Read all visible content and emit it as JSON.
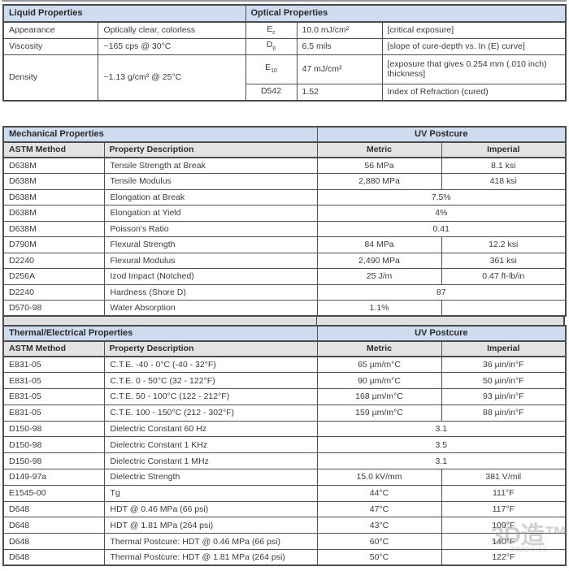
{
  "colors": {
    "header_blue": "#cddcee",
    "subheader_gray": "#e2e3e5",
    "border": "#515154",
    "text": "#3b3b3d"
  },
  "liquid_table": {
    "title": "Liquid Properties",
    "rows": [
      {
        "label": "Appearance",
        "value": "Optically clear, colorless"
      },
      {
        "label": "Viscosity",
        "value": "~165 cps @ 30°C"
      },
      {
        "label": "Density",
        "value": "~1.13 g/cm³ @ 25°C"
      }
    ]
  },
  "optical_table": {
    "title": "Optical Properties",
    "rows": [
      {
        "symbol_base": "E",
        "symbol_sub": "c",
        "value": "10.0 mJ/cm²",
        "description": "[critical exposure]"
      },
      {
        "symbol_base": "D",
        "symbol_sub": "p",
        "value": "6.5 mils",
        "description": "[slope of cure-depth vs. In (E) curve]"
      },
      {
        "symbol_base": "E",
        "symbol_sub": "10",
        "value": "47 mJ/cm²",
        "description": "[exposure that gives 0.254 mm (.010 inch) thickness]"
      },
      {
        "symbol_base": "D542",
        "symbol_sub": "",
        "value": "1.52",
        "description": "Index of Refraction (cured)"
      }
    ]
  },
  "mechanical_table": {
    "title": "Mechanical Properties",
    "postcure_header": "UV Postcure",
    "columns": [
      "ASTM Method",
      "Property Description",
      "Metric",
      "Imperial"
    ],
    "rows": [
      {
        "method": "D638M",
        "property": "Tensile Strength at Break",
        "metric": "56 MPa",
        "imperial": "8.1 ksi"
      },
      {
        "method": "D638M",
        "property": "Tensile Modulus",
        "metric": "2,880 MPa",
        "imperial": "418 ksi"
      },
      {
        "method": "D638M",
        "property": "Elongation at Break",
        "metric": "7.5%",
        "span": true
      },
      {
        "method": "D638M",
        "property": "Elongation at Yield",
        "metric": "4%",
        "span": true
      },
      {
        "method": "D638M",
        "property": "Poisson's Ratio",
        "metric": "0.41",
        "span": true
      },
      {
        "method": "D790M",
        "property": "Flexural Strength",
        "metric": "84 MPa",
        "imperial": "12.2 ksi"
      },
      {
        "method": "D2240",
        "property": "Flexural Modulus",
        "metric": "2,490 MPa",
        "imperial": "361 ksi"
      },
      {
        "method": "D256A",
        "property": "Izod Impact (Notched)",
        "metric": "25 J/m",
        "imperial": "0.47 ft-lb/in"
      },
      {
        "method": "D2240",
        "property": "Hardness (Shore D)",
        "metric": "87",
        "span": true
      },
      {
        "method": "D570-98",
        "property": "Water Absorption",
        "metric": "1.1%",
        "imperial": ""
      }
    ]
  },
  "thermal_table": {
    "title": "Thermal/Electrical Properties",
    "postcure_header": "UV Postcure",
    "columns": [
      "ASTM Method",
      "Property Description",
      "Metric",
      "Imperial"
    ],
    "rows": [
      {
        "method": "E831-05",
        "property": "C.T.E. -40 - 0°C (-40 - 32°F)",
        "metric": "65 µm/m°C",
        "imperial": "36 µin/in°F"
      },
      {
        "method": "E831-05",
        "property": "C.T.E. 0 - 50°C (32 - 122°F)",
        "metric": "90 µm/m°C",
        "imperial": "50 µin/in°F"
      },
      {
        "method": "E831-05",
        "property": "C.T.E. 50 - 100°C (122 - 212°F)",
        "metric": "168 µm/m°C",
        "imperial": "93 µin/in°F"
      },
      {
        "method": "E831-05",
        "property": "C.T.E. 100 - 150°C (212 - 302°F)",
        "metric": "159 µm/m°C",
        "imperial": "88 µin/in°F"
      },
      {
        "method": "D150-98",
        "property": "Dielectric Constant 60 Hz",
        "metric": "3.1",
        "span": true
      },
      {
        "method": "D150-98",
        "property": "Dielectric Constant 1 KHz",
        "metric": "3.5",
        "span": true
      },
      {
        "method": "D150-98",
        "property": "Dielectric Constant 1 MHz",
        "metric": "3.1",
        "span": true
      },
      {
        "method": "D149-97a",
        "property": "Dielectric Strength",
        "metric": "15.0 kV/mm",
        "imperial": "381 V/mil"
      },
      {
        "method": "E1545-00",
        "property": "Tg",
        "metric": "44°C",
        "imperial": "111°F"
      },
      {
        "method": "D648",
        "property": "HDT @ 0.46 MPa (66 psi)",
        "metric": "47°C",
        "imperial": "117°F"
      },
      {
        "method": "D648",
        "property": "HDT @ 1.81 MPa (264 psi)",
        "metric": "43°C",
        "imperial": "109°F"
      },
      {
        "method": "D648",
        "property": "Thermal Postcure: HDT @ 0.46 MPa (66 psi)",
        "metric": "60°C",
        "imperial": "140°F"
      },
      {
        "method": "D648",
        "property": "Thermal Postcure: HDT @ 1.81 MPa (264 psi)",
        "metric": "50°C",
        "imperial": "122°F"
      }
    ]
  },
  "watermark": {
    "text": "3D造™",
    "subtext": "3dzao.cn"
  }
}
